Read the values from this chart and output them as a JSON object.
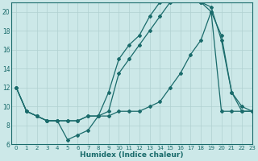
{
  "bg_color": "#cce8e8",
  "line_color": "#1a6b6b",
  "grid_color": "#b0d0d0",
  "xlabel": "Humidex (Indice chaleur)",
  "xlim": [
    -0.5,
    23
  ],
  "ylim": [
    6,
    21
  ],
  "yticks": [
    6,
    8,
    10,
    12,
    14,
    16,
    18,
    20
  ],
  "xticks": [
    0,
    1,
    2,
    3,
    4,
    5,
    6,
    7,
    8,
    9,
    10,
    11,
    12,
    13,
    14,
    15,
    16,
    17,
    18,
    19,
    20,
    21,
    22,
    23
  ],
  "line1_x": [
    0,
    1,
    2,
    3,
    4,
    5,
    6,
    7,
    8,
    9,
    10,
    11,
    12,
    13,
    14,
    15,
    16,
    17,
    18,
    19,
    20,
    21,
    22,
    23
  ],
  "line1_y": [
    12,
    9.5,
    9.0,
    8.5,
    8.5,
    6.5,
    7.0,
    7.5,
    9.0,
    11.5,
    15.0,
    16.5,
    17.5,
    19.5,
    21.0,
    21.5,
    21.5,
    21.5,
    21.0,
    20.5,
    17.0,
    11.5,
    10.0,
    9.5
  ],
  "line2_x": [
    0,
    1,
    2,
    3,
    4,
    5,
    6,
    7,
    8,
    9,
    10,
    11,
    12,
    13,
    14,
    15,
    16,
    17,
    18,
    19,
    20,
    21,
    22,
    23
  ],
  "line2_y": [
    12,
    9.5,
    9.0,
    8.5,
    8.5,
    8.5,
    8.5,
    9.0,
    9.0,
    9.0,
    9.5,
    9.5,
    9.5,
    10.0,
    10.5,
    12.0,
    13.5,
    15.5,
    17.0,
    20.0,
    9.5,
    9.5,
    9.5,
    9.5
  ],
  "line3_x": [
    0,
    1,
    2,
    3,
    4,
    5,
    6,
    7,
    8,
    9,
    10,
    11,
    12,
    13,
    14,
    15,
    16,
    17,
    18,
    19,
    20,
    21,
    22,
    23
  ],
  "line3_y": [
    12,
    9.5,
    9.0,
    8.5,
    8.5,
    8.5,
    8.5,
    9.0,
    9.0,
    9.5,
    13.5,
    15.0,
    16.5,
    18.0,
    19.5,
    21.0,
    21.5,
    21.5,
    21.0,
    20.0,
    17.5,
    11.5,
    9.5,
    9.5
  ]
}
